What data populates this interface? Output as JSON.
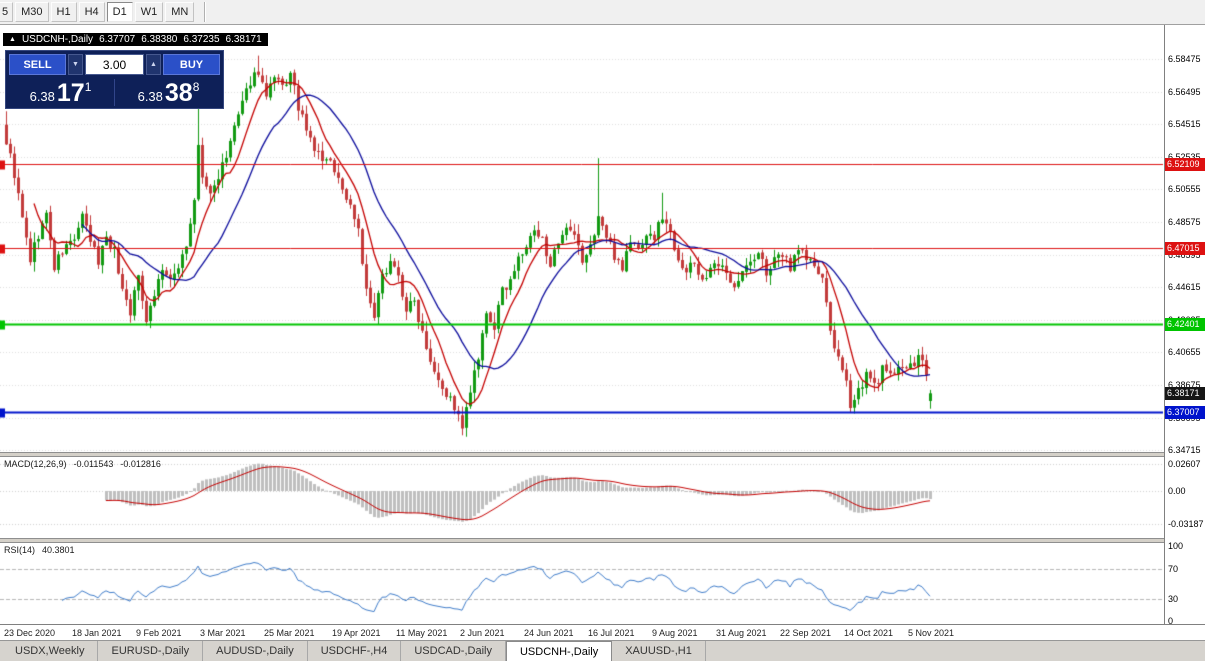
{
  "toolbar": {
    "periods": [
      {
        "label": "5",
        "active": false
      },
      {
        "label": "M30",
        "active": false
      },
      {
        "label": "H1",
        "active": false
      },
      {
        "label": "H4",
        "active": false
      },
      {
        "label": "D1",
        "active": true
      },
      {
        "label": "W1",
        "active": false
      },
      {
        "label": "MN",
        "active": false
      }
    ]
  },
  "chart": {
    "title": {
      "toggle_icon": "▲",
      "symbol": "USDCNH-,Daily",
      "open": "6.37707",
      "high": "6.38380",
      "low": "6.37235",
      "close": "6.38171"
    },
    "trade_panel": {
      "sell_label": "SELL",
      "buy_label": "BUY",
      "volume": "3.00",
      "spin_down_icon": "▼",
      "spin_up_icon": "▲",
      "sell_price": {
        "prefix": "6.38",
        "big": "17",
        "sup": "1"
      },
      "buy_price": {
        "prefix": "6.38",
        "big": "38",
        "sup": "8"
      }
    },
    "levels": [
      {
        "label": "6.52109",
        "price": 6.52109,
        "color": "#dd1111",
        "line_width": 1,
        "draw_line": true
      },
      {
        "label": "6.47015",
        "price": 6.47015,
        "color": "#dd1111",
        "line_width": 1,
        "draw_line": true
      },
      {
        "label": "6.42401",
        "price": 6.42401,
        "color": "#00c400",
        "line_width": 2,
        "draw_line": true
      },
      {
        "label": "6.38171",
        "price": 6.38171,
        "color": "#161616",
        "line_width": 1,
        "draw_line": false
      },
      {
        "label": "6.37007",
        "price": 6.37007,
        "color": "#0013cc",
        "line_width": 2,
        "draw_line": true
      }
    ],
    "price_ticks": [
      "6.58475",
      "6.56495",
      "6.54515",
      "6.52535",
      "6.50555",
      "6.48575",
      "6.46595",
      "6.44615",
      "6.42635",
      "6.40655",
      "6.38675",
      "6.36695",
      "6.34715"
    ]
  },
  "macd": {
    "label": "MACD(12,26,9)",
    "value1": "-0.011543",
    "value2": "-0.012816",
    "ticks": [
      "0.02607",
      "0.00",
      "-0.03187"
    ]
  },
  "rsi": {
    "label": "RSI(14)",
    "value": "40.3801",
    "ticks": [
      "100",
      "70",
      "30",
      "0"
    ],
    "levels": [
      70,
      30
    ]
  },
  "time_axis": [
    {
      "label": "23 Dec 2020",
      "bar": 0
    },
    {
      "label": "18 Jan 2021",
      "bar": 17
    },
    {
      "label": "9 Feb 2021",
      "bar": 33
    },
    {
      "label": "3 Mar 2021",
      "bar": 49
    },
    {
      "label": "25 Mar 2021",
      "bar": 65
    },
    {
      "label": "19 Apr 2021",
      "bar": 82
    },
    {
      "label": "11 May 2021",
      "bar": 98
    },
    {
      "label": "2 Jun 2021",
      "bar": 114
    },
    {
      "label": "24 Jun 2021",
      "bar": 130
    },
    {
      "label": "16 Jul 2021",
      "bar": 146
    },
    {
      "label": "9 Aug 2021",
      "bar": 162
    },
    {
      "label": "31 Aug 2021",
      "bar": 178
    },
    {
      "label": "22 Sep 2021",
      "bar": 194
    },
    {
      "label": "14 Oct 2021",
      "bar": 210
    },
    {
      "label": "5 Nov 2021",
      "bar": 226
    }
  ],
  "tabs": [
    {
      "label": "USDX,Weekly",
      "active": false
    },
    {
      "label": "EURUSD-,Daily",
      "active": false
    },
    {
      "label": "AUDUSD-,Daily",
      "active": false
    },
    {
      "label": "USDCHF-,H4",
      "active": false
    },
    {
      "label": "USDCAD-,Daily",
      "active": false
    },
    {
      "label": "USDCNH-,Daily",
      "active": true
    },
    {
      "label": "XAUUSD-,H1",
      "active": false
    }
  ],
  "chart_data": {
    "type": "candlestick",
    "symbol": "USDCNH-",
    "timeframe": "Daily",
    "bar_count": 232,
    "seed": 9,
    "last_bar": {
      "open": 6.37707,
      "high": 6.3838,
      "low": 6.37235,
      "close": 6.38171
    },
    "price_anchors": [
      [
        0,
        6.535
      ],
      [
        2,
        6.515
      ],
      [
        4,
        6.487
      ],
      [
        6,
        6.463
      ],
      [
        8,
        6.478
      ],
      [
        10,
        6.49
      ],
      [
        12,
        6.458
      ],
      [
        14,
        6.468
      ],
      [
        17,
        6.476
      ],
      [
        19,
        6.488
      ],
      [
        21,
        6.474
      ],
      [
        23,
        6.462
      ],
      [
        25,
        6.478
      ],
      [
        27,
        6.468
      ],
      [
        29,
        6.445
      ],
      [
        31,
        6.432
      ],
      [
        33,
        6.452
      ],
      [
        35,
        6.428
      ],
      [
        37,
        6.442
      ],
      [
        39,
        6.458
      ],
      [
        41,
        6.448
      ],
      [
        43,
        6.46
      ],
      [
        45,
        6.472
      ],
      [
        47,
        6.497
      ],
      [
        48,
        6.532
      ],
      [
        49,
        6.512
      ],
      [
        51,
        6.502
      ],
      [
        53,
        6.514
      ],
      [
        55,
        6.524
      ],
      [
        57,
        6.544
      ],
      [
        59,
        6.556
      ],
      [
        61,
        6.572
      ],
      [
        63,
        6.578
      ],
      [
        65,
        6.561
      ],
      [
        67,
        6.572
      ],
      [
        69,
        6.567
      ],
      [
        71,
        6.575
      ],
      [
        73,
        6.556
      ],
      [
        75,
        6.54
      ],
      [
        77,
        6.53
      ],
      [
        79,
        6.524
      ],
      [
        82,
        6.519
      ],
      [
        84,
        6.505
      ],
      [
        86,
        6.496
      ],
      [
        88,
        6.482
      ],
      [
        90,
        6.443
      ],
      [
        92,
        6.427
      ],
      [
        94,
        6.452
      ],
      [
        96,
        6.464
      ],
      [
        98,
        6.452
      ],
      [
        100,
        6.433
      ],
      [
        102,
        6.437
      ],
      [
        104,
        6.42
      ],
      [
        106,
        6.403
      ],
      [
        108,
        6.392
      ],
      [
        110,
        6.381
      ],
      [
        112,
        6.374
      ],
      [
        114,
        6.359
      ],
      [
        116,
        6.383
      ],
      [
        118,
        6.402
      ],
      [
        120,
        6.428
      ],
      [
        122,
        6.422
      ],
      [
        124,
        6.443
      ],
      [
        126,
        6.452
      ],
      [
        128,
        6.462
      ],
      [
        130,
        6.471
      ],
      [
        132,
        6.479
      ],
      [
        134,
        6.474
      ],
      [
        136,
        6.462
      ],
      [
        138,
        6.47
      ],
      [
        140,
        6.48
      ],
      [
        142,
        6.476
      ],
      [
        144,
        6.462
      ],
      [
        146,
        6.47
      ],
      [
        148,
        6.49
      ],
      [
        150,
        6.476
      ],
      [
        152,
        6.466
      ],
      [
        154,
        6.459
      ],
      [
        156,
        6.474
      ],
      [
        158,
        6.469
      ],
      [
        160,
        6.479
      ],
      [
        162,
        6.476
      ],
      [
        164,
        6.49
      ],
      [
        166,
        6.479
      ],
      [
        168,
        6.465
      ],
      [
        170,
        6.455
      ],
      [
        172,
        6.461
      ],
      [
        174,
        6.451
      ],
      [
        176,
        6.456
      ],
      [
        178,
        6.459
      ],
      [
        180,
        6.454
      ],
      [
        182,
        6.449
      ],
      [
        184,
        6.455
      ],
      [
        186,
        6.461
      ],
      [
        188,
        6.466
      ],
      [
        190,
        6.456
      ],
      [
        192,
        6.461
      ],
      [
        194,
        6.466
      ],
      [
        196,
        6.459
      ],
      [
        198,
        6.471
      ],
      [
        200,
        6.464
      ],
      [
        202,
        6.459
      ],
      [
        204,
        6.449
      ],
      [
        206,
        6.421
      ],
      [
        208,
        6.401
      ],
      [
        210,
        6.386
      ],
      [
        211,
        6.376
      ],
      [
        213,
        6.384
      ],
      [
        215,
        6.392
      ],
      [
        217,
        6.386
      ],
      [
        219,
        6.396
      ],
      [
        221,
        6.391
      ],
      [
        223,
        6.401
      ],
      [
        225,
        6.396
      ],
      [
        227,
        6.4
      ],
      [
        229,
        6.403
      ],
      [
        230,
        6.392
      ],
      [
        231,
        6.38171
      ]
    ],
    "wick_overrides": [
      {
        "bar": 0,
        "high": 6.553
      },
      {
        "bar": 48,
        "high": 6.563
      },
      {
        "bar": 63,
        "high": 6.5868
      },
      {
        "bar": 114,
        "low": 6.3562
      },
      {
        "bar": 148,
        "high": 6.5245
      },
      {
        "bar": 164,
        "high": 6.5035
      },
      {
        "bar": 211,
        "low": 6.3703
      }
    ],
    "ma_fast_period": 8,
    "ma_slow_period": 20,
    "macd_params": {
      "fast": 12,
      "slow": 26,
      "signal": 9
    },
    "rsi_period": 14,
    "y_axis": {
      "top_price": 6.58475,
      "scale": 1646.5
    },
    "colors": {
      "up": "#129a12",
      "down": "#c23b3b",
      "ma_fast": "#c40000",
      "ma_slow": "#0b0b9c",
      "grid": "#dcdcdc",
      "macd_hist": "#bfbfbf",
      "macd_signal": "#c40000",
      "rsi_line": "#3f7cc9"
    }
  }
}
